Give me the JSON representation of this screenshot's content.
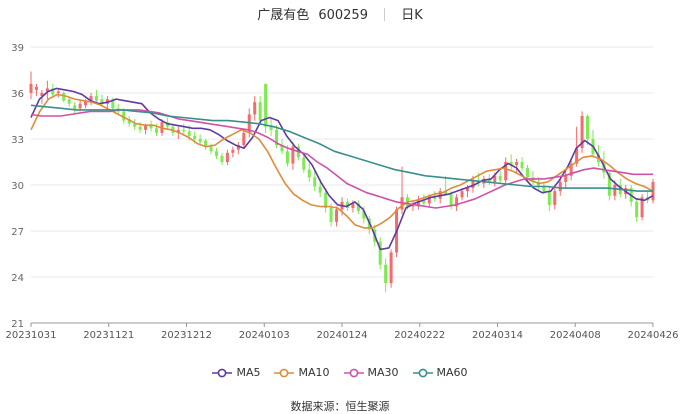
{
  "header": {
    "name": "广晟有色",
    "code": "600259",
    "period": "日K"
  },
  "footer": {
    "source": "数据来源：恒生聚源"
  },
  "chart_data": {
    "type": "candlestick",
    "title": "广晟有色 600259 日K",
    "ylim": [
      21,
      39
    ],
    "yticks": [
      21,
      24,
      27,
      30,
      33,
      36,
      39
    ],
    "xticks": [
      "20231031",
      "20231121",
      "20231212",
      "20240103",
      "20240124",
      "20240222",
      "20240314",
      "20240408",
      "20240426"
    ],
    "grid": true,
    "legend_position": "bottom",
    "colors": {
      "up": "#f36b6b",
      "down": "#7dea50",
      "MA5": "#5e3aa6",
      "MA10": "#e08b3a",
      "MA30": "#cf52a8",
      "MA60": "#3a8f8c"
    },
    "candles": [
      {
        "o": 36.0,
        "h": 37.4,
        "l": 35.6,
        "c": 36.6
      },
      {
        "o": 36.2,
        "h": 36.6,
        "l": 35.8,
        "c": 36.4
      },
      {
        "o": 35.8,
        "h": 36.2,
        "l": 35.3,
        "c": 36.0
      },
      {
        "o": 36.1,
        "h": 36.8,
        "l": 35.6,
        "c": 36.3
      },
      {
        "o": 36.3,
        "h": 36.6,
        "l": 35.8,
        "c": 35.9
      },
      {
        "o": 36.0,
        "h": 36.2,
        "l": 35.7,
        "c": 36.1
      },
      {
        "o": 36.0,
        "h": 36.1,
        "l": 35.4,
        "c": 35.5
      },
      {
        "o": 35.6,
        "h": 35.7,
        "l": 35.1,
        "c": 35.3
      },
      {
        "o": 35.2,
        "h": 35.4,
        "l": 34.7,
        "c": 34.9
      },
      {
        "o": 35.0,
        "h": 35.5,
        "l": 34.8,
        "c": 35.3
      },
      {
        "o": 35.2,
        "h": 35.6,
        "l": 35.0,
        "c": 35.5
      },
      {
        "o": 35.5,
        "h": 36.0,
        "l": 35.2,
        "c": 35.8
      },
      {
        "o": 35.8,
        "h": 36.2,
        "l": 35.3,
        "c": 35.5
      },
      {
        "o": 35.6,
        "h": 35.9,
        "l": 35.1,
        "c": 35.3
      },
      {
        "o": 35.3,
        "h": 35.8,
        "l": 35.0,
        "c": 35.6
      },
      {
        "o": 35.6,
        "h": 35.7,
        "l": 34.9,
        "c": 35.0
      },
      {
        "o": 35.0,
        "h": 35.3,
        "l": 34.6,
        "c": 34.8
      },
      {
        "o": 34.8,
        "h": 35.0,
        "l": 34.0,
        "c": 34.2
      },
      {
        "o": 34.3,
        "h": 34.5,
        "l": 33.8,
        "c": 34.0
      },
      {
        "o": 34.0,
        "h": 34.3,
        "l": 33.6,
        "c": 33.8
      },
      {
        "o": 33.8,
        "h": 34.1,
        "l": 33.4,
        "c": 33.6
      },
      {
        "o": 33.6,
        "h": 34.0,
        "l": 33.3,
        "c": 33.9
      },
      {
        "o": 33.9,
        "h": 34.2,
        "l": 33.5,
        "c": 33.7
      },
      {
        "o": 33.7,
        "h": 34.0,
        "l": 33.2,
        "c": 33.4
      },
      {
        "o": 33.4,
        "h": 34.3,
        "l": 33.2,
        "c": 34.1
      },
      {
        "o": 34.1,
        "h": 34.4,
        "l": 33.6,
        "c": 33.8
      },
      {
        "o": 33.8,
        "h": 34.0,
        "l": 33.2,
        "c": 33.4
      },
      {
        "o": 33.4,
        "h": 33.8,
        "l": 33.0,
        "c": 33.6
      },
      {
        "o": 33.6,
        "h": 34.0,
        "l": 33.2,
        "c": 33.5
      },
      {
        "o": 33.5,
        "h": 33.9,
        "l": 32.9,
        "c": 33.2
      },
      {
        "o": 33.2,
        "h": 33.5,
        "l": 32.7,
        "c": 33.0
      },
      {
        "o": 33.0,
        "h": 33.3,
        "l": 32.6,
        "c": 32.8
      },
      {
        "o": 32.9,
        "h": 33.0,
        "l": 32.3,
        "c": 32.5
      },
      {
        "o": 32.5,
        "h": 32.7,
        "l": 32.0,
        "c": 32.2
      },
      {
        "o": 32.2,
        "h": 32.4,
        "l": 31.7,
        "c": 31.9
      },
      {
        "o": 31.9,
        "h": 32.1,
        "l": 31.3,
        "c": 31.5
      },
      {
        "o": 31.5,
        "h": 32.3,
        "l": 31.3,
        "c": 32.1
      },
      {
        "o": 32.1,
        "h": 32.5,
        "l": 31.8,
        "c": 32.3
      },
      {
        "o": 32.3,
        "h": 32.8,
        "l": 32.0,
        "c": 32.6
      },
      {
        "o": 32.6,
        "h": 33.6,
        "l": 32.4,
        "c": 33.4
      },
      {
        "o": 33.4,
        "h": 35.0,
        "l": 33.1,
        "c": 34.6
      },
      {
        "o": 34.6,
        "h": 35.8,
        "l": 34.2,
        "c": 35.4
      },
      {
        "o": 35.4,
        "h": 35.8,
        "l": 34.0,
        "c": 34.2
      },
      {
        "o": 36.6,
        "h": 36.6,
        "l": 33.4,
        "c": 33.8
      },
      {
        "o": 33.8,
        "h": 34.4,
        "l": 33.2,
        "c": 33.6
      },
      {
        "o": 33.6,
        "h": 33.9,
        "l": 32.4,
        "c": 32.6
      },
      {
        "o": 32.6,
        "h": 33.0,
        "l": 32.0,
        "c": 32.2
      },
      {
        "o": 32.2,
        "h": 32.6,
        "l": 31.2,
        "c": 31.4
      },
      {
        "o": 31.4,
        "h": 32.8,
        "l": 31.0,
        "c": 32.5
      },
      {
        "o": 32.5,
        "h": 32.7,
        "l": 31.6,
        "c": 31.8
      },
      {
        "o": 31.8,
        "h": 32.0,
        "l": 30.8,
        "c": 31.0
      },
      {
        "o": 31.0,
        "h": 31.4,
        "l": 30.2,
        "c": 30.5
      },
      {
        "o": 30.5,
        "h": 31.0,
        "l": 29.6,
        "c": 29.9
      },
      {
        "o": 29.9,
        "h": 30.4,
        "l": 29.2,
        "c": 29.5
      },
      {
        "o": 29.5,
        "h": 29.8,
        "l": 28.2,
        "c": 28.5
      },
      {
        "o": 28.5,
        "h": 28.8,
        "l": 27.3,
        "c": 27.6
      },
      {
        "o": 27.6,
        "h": 28.6,
        "l": 27.3,
        "c": 28.4
      },
      {
        "o": 28.4,
        "h": 29.2,
        "l": 28.0,
        "c": 28.9
      },
      {
        "o": 28.9,
        "h": 29.1,
        "l": 28.3,
        "c": 28.5
      },
      {
        "o": 28.5,
        "h": 29.0,
        "l": 28.2,
        "c": 28.8
      },
      {
        "o": 28.8,
        "h": 29.0,
        "l": 28.1,
        "c": 28.3
      },
      {
        "o": 28.3,
        "h": 28.6,
        "l": 27.5,
        "c": 27.8
      },
      {
        "o": 27.8,
        "h": 28.0,
        "l": 26.8,
        "c": 27.1
      },
      {
        "o": 27.1,
        "h": 27.4,
        "l": 26.0,
        "c": 26.3
      },
      {
        "o": 26.3,
        "h": 26.6,
        "l": 24.5,
        "c": 24.8
      },
      {
        "o": 24.8,
        "h": 25.2,
        "l": 23.0,
        "c": 23.6
      },
      {
        "o": 23.6,
        "h": 25.8,
        "l": 23.3,
        "c": 25.6
      },
      {
        "o": 25.6,
        "h": 28.6,
        "l": 25.3,
        "c": 28.4
      },
      {
        "o": 28.4,
        "h": 31.2,
        "l": 28.1,
        "c": 29.2
      },
      {
        "o": 29.2,
        "h": 29.4,
        "l": 28.4,
        "c": 28.6
      },
      {
        "o": 28.6,
        "h": 29.0,
        "l": 28.3,
        "c": 28.8
      },
      {
        "o": 28.6,
        "h": 29.3,
        "l": 28.4,
        "c": 29.0
      },
      {
        "o": 29.0,
        "h": 29.4,
        "l": 28.6,
        "c": 28.8
      },
      {
        "o": 28.8,
        "h": 29.4,
        "l": 28.6,
        "c": 29.3
      },
      {
        "o": 29.3,
        "h": 29.6,
        "l": 28.9,
        "c": 29.1
      },
      {
        "o": 29.1,
        "h": 29.8,
        "l": 28.8,
        "c": 29.6
      },
      {
        "o": 29.6,
        "h": 30.6,
        "l": 29.3,
        "c": 29.4
      },
      {
        "o": 29.4,
        "h": 29.6,
        "l": 28.4,
        "c": 28.6
      },
      {
        "o": 28.6,
        "h": 29.4,
        "l": 28.3,
        "c": 29.2
      },
      {
        "o": 29.2,
        "h": 29.8,
        "l": 29.0,
        "c": 29.6
      },
      {
        "o": 29.6,
        "h": 30.0,
        "l": 29.2,
        "c": 29.8
      },
      {
        "o": 29.8,
        "h": 30.6,
        "l": 29.5,
        "c": 30.3
      },
      {
        "o": 30.3,
        "h": 30.8,
        "l": 29.9,
        "c": 30.1
      },
      {
        "o": 30.1,
        "h": 30.6,
        "l": 29.8,
        "c": 30.4
      },
      {
        "o": 30.4,
        "h": 30.7,
        "l": 30.0,
        "c": 30.2
      },
      {
        "o": 30.2,
        "h": 30.8,
        "l": 29.9,
        "c": 30.6
      },
      {
        "o": 30.6,
        "h": 30.9,
        "l": 30.1,
        "c": 30.3
      },
      {
        "o": 30.3,
        "h": 31.8,
        "l": 30.1,
        "c": 31.5
      },
      {
        "o": 31.5,
        "h": 32.0,
        "l": 31.0,
        "c": 31.3
      },
      {
        "o": 31.3,
        "h": 31.7,
        "l": 30.8,
        "c": 31.5
      },
      {
        "o": 31.5,
        "h": 31.8,
        "l": 30.9,
        "c": 31.1
      },
      {
        "o": 31.1,
        "h": 31.3,
        "l": 30.3,
        "c": 30.5
      },
      {
        "o": 30.5,
        "h": 30.9,
        "l": 30.0,
        "c": 30.2
      },
      {
        "o": 30.2,
        "h": 30.5,
        "l": 29.7,
        "c": 29.9
      },
      {
        "o": 29.9,
        "h": 30.2,
        "l": 29.4,
        "c": 29.6
      },
      {
        "o": 29.6,
        "h": 29.9,
        "l": 28.3,
        "c": 28.7
      },
      {
        "o": 28.7,
        "h": 29.8,
        "l": 28.4,
        "c": 29.6
      },
      {
        "o": 29.6,
        "h": 30.4,
        "l": 29.3,
        "c": 30.2
      },
      {
        "o": 30.2,
        "h": 30.9,
        "l": 29.8,
        "c": 30.6
      },
      {
        "o": 30.6,
        "h": 31.6,
        "l": 30.3,
        "c": 31.4
      },
      {
        "o": 31.4,
        "h": 33.8,
        "l": 31.2,
        "c": 32.4
      },
      {
        "o": 32.4,
        "h": 34.8,
        "l": 32.1,
        "c": 34.5
      },
      {
        "o": 34.5,
        "h": 34.6,
        "l": 32.6,
        "c": 33.0
      },
      {
        "o": 33.0,
        "h": 33.6,
        "l": 31.8,
        "c": 32.0
      },
      {
        "o": 32.0,
        "h": 32.6,
        "l": 31.2,
        "c": 31.5
      },
      {
        "o": 31.5,
        "h": 32.2,
        "l": 30.4,
        "c": 30.8
      },
      {
        "o": 30.8,
        "h": 31.0,
        "l": 29.0,
        "c": 29.3
      },
      {
        "o": 29.3,
        "h": 30.3,
        "l": 29.0,
        "c": 30.0
      },
      {
        "o": 30.0,
        "h": 30.4,
        "l": 29.2,
        "c": 29.4
      },
      {
        "o": 29.4,
        "h": 30.0,
        "l": 29.1,
        "c": 29.8
      },
      {
        "o": 29.8,
        "h": 30.0,
        "l": 28.6,
        "c": 28.9
      },
      {
        "o": 28.9,
        "h": 29.1,
        "l": 27.6,
        "c": 27.9
      },
      {
        "o": 27.9,
        "h": 29.4,
        "l": 27.7,
        "c": 29.2
      },
      {
        "o": 29.2,
        "h": 29.6,
        "l": 28.8,
        "c": 29.0
      },
      {
        "o": 29.0,
        "h": 30.4,
        "l": 28.8,
        "c": 30.2
      }
    ],
    "series": [
      {
        "name": "MA5",
        "values": [
          34.4,
          35.6,
          36.1,
          36.3,
          36.2,
          36.1,
          35.9,
          35.5,
          35.3,
          35.4,
          35.6,
          35.5,
          35.4,
          35.3,
          34.7,
          34.3,
          34.0,
          33.9,
          33.8,
          33.7,
          33.7,
          33.6,
          33.3,
          32.9,
          32.6,
          32.4,
          33.1,
          34.2,
          34.4,
          34.2,
          33.2,
          32.5,
          32.0,
          31.3,
          30.2,
          29.3,
          28.7,
          28.6,
          28.9,
          28.4,
          27.2,
          25.8,
          25.9,
          27.1,
          28.5,
          28.8,
          29.0,
          29.2,
          29.3,
          29.4,
          29.6,
          29.8,
          30.0,
          30.3,
          30.4,
          31.0,
          31.4,
          31.1,
          30.4,
          29.8,
          29.5,
          29.6,
          30.3,
          31.2,
          32.4,
          32.9,
          32.5,
          31.5,
          30.4,
          29.9,
          29.5,
          29.1,
          29.0,
          29.3
        ]
      },
      {
        "name": "MA10",
        "values": [
          33.6,
          34.8,
          35.6,
          35.9,
          35.8,
          35.6,
          35.5,
          35.4,
          35.2,
          34.9,
          34.6,
          34.3,
          34.0,
          33.9,
          33.9,
          33.7,
          33.6,
          33.4,
          33.1,
          32.7,
          32.5,
          32.6,
          33.0,
          33.3,
          33.6,
          33.4,
          33.0,
          32.2,
          31.1,
          30.1,
          29.4,
          29.0,
          28.7,
          28.6,
          28.6,
          28.5,
          28.0,
          27.4,
          27.2,
          27.2,
          27.5,
          27.9,
          28.5,
          28.9,
          29.0,
          29.2,
          29.4,
          29.5,
          29.8,
          30.0,
          30.3,
          30.6,
          30.9,
          31.0,
          31.1,
          30.9,
          30.6,
          30.3,
          30.1,
          30.2,
          30.6,
          31.0,
          31.4,
          31.8,
          31.9,
          31.7,
          31.3,
          30.8,
          30.4,
          30.1,
          29.9,
          29.6
        ]
      },
      {
        "name": "MA30",
        "values": [
          34.6,
          34.5,
          34.5,
          34.5,
          34.6,
          34.7,
          34.8,
          34.8,
          34.8,
          34.9,
          34.9,
          34.9,
          34.8,
          34.7,
          34.5,
          34.3,
          34.2,
          34.1,
          34.0,
          33.9,
          33.8,
          33.7,
          33.6,
          33.4,
          33.1,
          32.7,
          32.4,
          32.2,
          32.0,
          31.5,
          31.1,
          30.6,
          30.1,
          29.8,
          29.5,
          29.3,
          29.1,
          28.9,
          28.8,
          28.7,
          28.6,
          28.5,
          28.6,
          28.7,
          28.9,
          29.1,
          29.4,
          29.7,
          30.0,
          30.2,
          30.4,
          30.4,
          30.4,
          30.5,
          30.6,
          30.8,
          31.0,
          31.1,
          31.0,
          30.9,
          30.8,
          30.7,
          30.7,
          30.7
        ]
      },
      {
        "name": "MA60",
        "values": [
          35.2,
          35.1,
          35.0,
          34.9,
          34.9,
          34.9,
          34.9,
          34.8,
          34.7,
          34.5,
          34.4,
          34.3,
          34.2,
          34.2,
          34.1,
          34.0,
          33.8,
          33.5,
          33.1,
          32.7,
          32.2,
          31.9,
          31.6,
          31.3,
          31.0,
          30.8,
          30.6,
          30.5,
          30.4,
          30.3,
          30.2,
          30.1,
          30.0,
          29.9,
          29.9,
          29.8,
          29.8,
          29.8,
          29.8,
          29.7,
          29.6,
          29.6
        ]
      }
    ]
  }
}
